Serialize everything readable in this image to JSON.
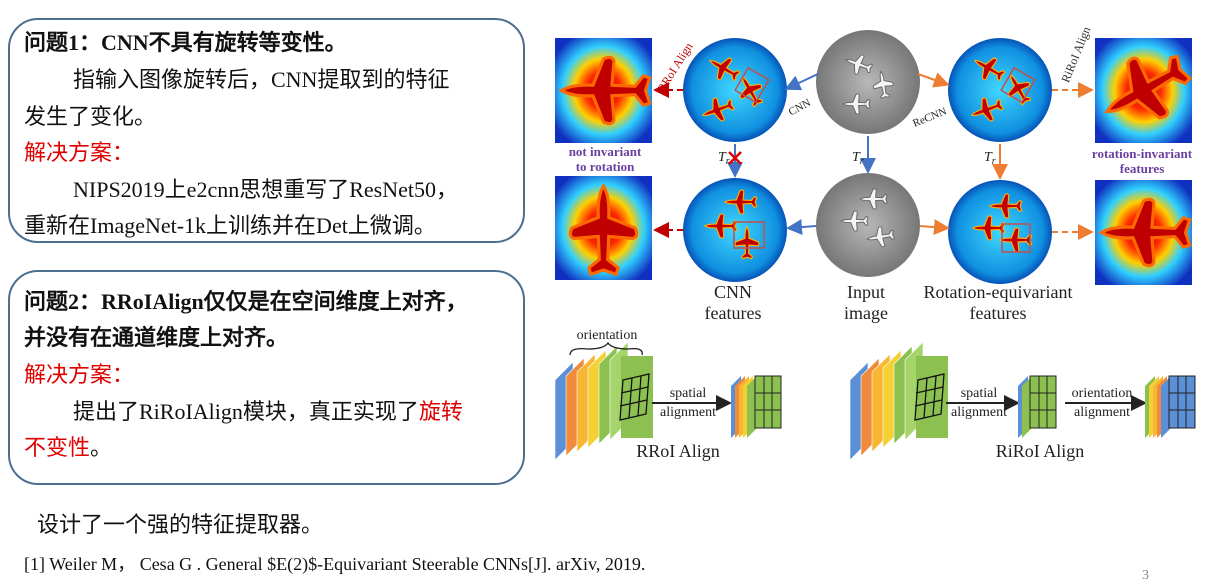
{
  "problem1": {
    "title": "问题1：CNN不具有旋转等变性。",
    "description_lines": [
      "指输入图像旋转后，CNN提取到的特征",
      "发生了变化。"
    ],
    "solution_label": "解决方案：",
    "solution_lines": [
      "NIPS2019上e2cnn思想重写了ResNet50，",
      "重新在ImageNet-1k上训练并在Det上微调。"
    ]
  },
  "problem2": {
    "title_lines": [
      "问题2：RRoIAlign仅仅是在空间维度上对齐，",
      "并没有在通道维度上对齐。"
    ],
    "solution_label": "解决方案：",
    "solution_line1": {
      "text": "提出了RiRoIAlign模块，真正实现了",
      "highlight": "旋转"
    },
    "solution_line2": {
      "highlight": "不变性",
      "text": "。"
    }
  },
  "figure": {
    "rroi_align_top": "RRoI Align",
    "riroi_align_top": "RiRoI Align",
    "cnn_arrow": "CNN",
    "recnn_arrow": "ReCNN",
    "not_invariant": [
      "not invariant",
      "to rotation"
    ],
    "rotation_invariant": [
      "rotation-invariant",
      "features"
    ],
    "transform": [
      {
        "symbol": "T",
        "subscript": "r"
      },
      {
        "symbol": "T",
        "subscript": "r"
      },
      {
        "symbol": "T",
        "subscript": "r"
      }
    ],
    "cnn_features": [
      "CNN",
      "features"
    ],
    "input_image": [
      "Input",
      "image"
    ],
    "equivariant_features": [
      "Rotation-equivariant",
      "features"
    ],
    "orientation": "orientation",
    "spatial_alignment_1": [
      "spatial",
      "alignment"
    ],
    "spatial_alignment_2": [
      "spatial",
      "alignment"
    ],
    "orientation_alignment": [
      "orientation",
      "alignment"
    ],
    "rroi_caption": "RRoI Align",
    "riroi_caption": "RiRoI Align"
  },
  "summary": "设计了一个强的特征提取器。",
  "reference": "[1] Weiler M， Cesa G . General $E(2)$-Equivariant Steerable CNNs[J]. arXiv, 2019.",
  "page_number": "3"
}
